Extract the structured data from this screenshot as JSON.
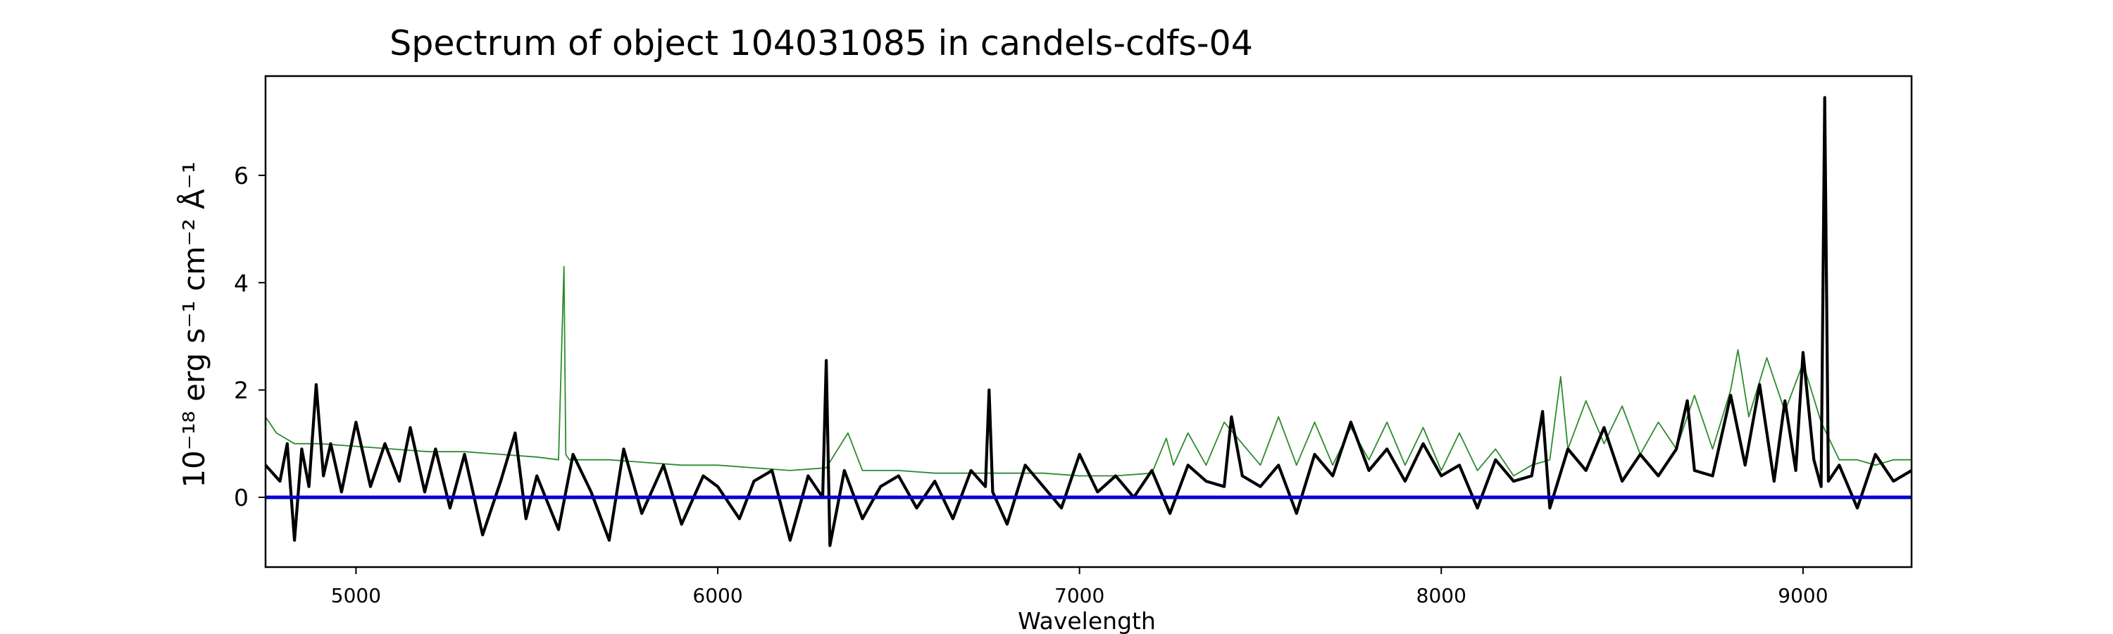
{
  "chart_data": {
    "type": "line",
    "title": "Spectrum of object 104031085 in candels-cdfs-04",
    "xlabel": "Wavelength",
    "ylabel": "10⁻¹⁸ erg s⁻¹ cm⁻² Å⁻¹",
    "xlim": [
      4750,
      9300
    ],
    "ylim": [
      -1.3,
      7.85
    ],
    "xticks": [
      5000,
      6000,
      7000,
      8000,
      9000
    ],
    "yticks": [
      0,
      2,
      4,
      6
    ],
    "grid": false,
    "colors": {
      "flux": "#000000",
      "error": "#2e8b2e",
      "zero": "#0000cc"
    },
    "series": [
      {
        "role": "flux",
        "x": [
          4750,
          4790,
          4810,
          4830,
          4850,
          4870,
          4890,
          4910,
          4930,
          4960,
          5000,
          5040,
          5080,
          5120,
          5150,
          5190,
          5220,
          5260,
          5300,
          5350,
          5400,
          5440,
          5470,
          5500,
          5560,
          5600,
          5650,
          5700,
          5740,
          5790,
          5850,
          5900,
          5960,
          6000,
          6060,
          6100,
          6150,
          6200,
          6250,
          6290,
          6300,
          6310,
          6350,
          6400,
          6450,
          6500,
          6550,
          6600,
          6650,
          6700,
          6740,
          6750,
          6760,
          6800,
          6850,
          6900,
          6950,
          7000,
          7050,
          7100,
          7150,
          7200,
          7250,
          7300,
          7350,
          7400,
          7420,
          7450,
          7500,
          7550,
          7600,
          7650,
          7700,
          7750,
          7800,
          7850,
          7900,
          7950,
          8000,
          8050,
          8100,
          8150,
          8200,
          8250,
          8280,
          8300,
          8350,
          8400,
          8450,
          8500,
          8550,
          8600,
          8650,
          8680,
          8700,
          8750,
          8800,
          8840,
          8880,
          8920,
          8950,
          8980,
          9000,
          9030,
          9050,
          9060,
          9070,
          9100,
          9150,
          9200,
          9250,
          9300
        ],
        "y": [
          0.6,
          0.3,
          1.0,
          -0.8,
          0.9,
          0.2,
          2.1,
          0.4,
          1.0,
          0.1,
          1.4,
          0.2,
          1.0,
          0.3,
          1.3,
          0.1,
          0.9,
          -0.2,
          0.8,
          -0.7,
          0.3,
          1.2,
          -0.4,
          0.4,
          -0.6,
          0.8,
          0.1,
          -0.8,
          0.9,
          -0.3,
          0.6,
          -0.5,
          0.4,
          0.2,
          -0.4,
          0.3,
          0.5,
          -0.8,
          0.4,
          0.0,
          2.55,
          -0.9,
          0.5,
          -0.4,
          0.2,
          0.4,
          -0.2,
          0.3,
          -0.4,
          0.5,
          0.2,
          2.0,
          0.1,
          -0.5,
          0.6,
          0.2,
          -0.2,
          0.8,
          0.1,
          0.4,
          0.0,
          0.5,
          -0.3,
          0.6,
          0.3,
          0.2,
          1.5,
          0.4,
          0.2,
          0.6,
          -0.3,
          0.8,
          0.4,
          1.4,
          0.5,
          0.9,
          0.3,
          1.0,
          0.4,
          0.6,
          -0.2,
          0.7,
          0.3,
          0.4,
          1.6,
          -0.2,
          0.9,
          0.5,
          1.3,
          0.3,
          0.8,
          0.4,
          0.9,
          1.8,
          0.5,
          0.4,
          1.9,
          0.6,
          2.1,
          0.3,
          1.8,
          0.5,
          2.7,
          0.7,
          0.2,
          7.45,
          0.3,
          0.6,
          -0.2,
          0.8,
          0.3,
          0.5
        ]
      },
      {
        "role": "error",
        "x": [
          4750,
          4780,
          4830,
          4900,
          5000,
          5100,
          5200,
          5300,
          5400,
          5500,
          5560,
          5575,
          5580,
          5590,
          5600,
          5700,
          5800,
          5900,
          6000,
          6100,
          6200,
          6300,
          6360,
          6400,
          6500,
          6600,
          6700,
          6800,
          6900,
          7000,
          7100,
          7200,
          7240,
          7260,
          7300,
          7350,
          7400,
          7500,
          7550,
          7600,
          7650,
          7700,
          7750,
          7800,
          7850,
          7900,
          7950,
          8000,
          8050,
          8100,
          8150,
          8200,
          8250,
          8300,
          8330,
          8350,
          8400,
          8450,
          8500,
          8550,
          8600,
          8650,
          8700,
          8750,
          8800,
          8820,
          8850,
          8900,
          8950,
          9000,
          9050,
          9100,
          9150,
          9200,
          9250,
          9300
        ],
        "y": [
          1.5,
          1.2,
          1.0,
          1.0,
          0.95,
          0.9,
          0.85,
          0.85,
          0.8,
          0.75,
          0.7,
          4.3,
          0.8,
          0.7,
          0.7,
          0.7,
          0.65,
          0.6,
          0.6,
          0.55,
          0.5,
          0.55,
          1.2,
          0.5,
          0.5,
          0.45,
          0.45,
          0.45,
          0.45,
          0.4,
          0.4,
          0.45,
          1.1,
          0.6,
          1.2,
          0.6,
          1.4,
          0.6,
          1.5,
          0.6,
          1.4,
          0.6,
          1.3,
          0.7,
          1.4,
          0.6,
          1.3,
          0.5,
          1.2,
          0.5,
          0.9,
          0.4,
          0.6,
          0.7,
          2.25,
          0.9,
          1.8,
          1.0,
          1.7,
          0.8,
          1.4,
          0.9,
          1.9,
          0.9,
          2.0,
          2.75,
          1.5,
          2.6,
          1.6,
          2.5,
          1.4,
          0.7,
          0.7,
          0.6,
          0.7,
          0.7
        ]
      },
      {
        "role": "zero",
        "x": [
          4750,
          9300
        ],
        "y": [
          0,
          0
        ]
      }
    ]
  }
}
